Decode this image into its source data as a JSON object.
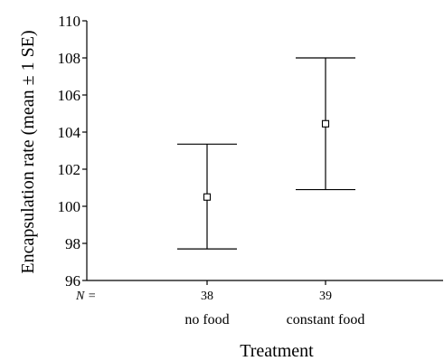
{
  "chart_data": {
    "type": "scatter",
    "title": "",
    "xlabel": "Treatment",
    "ylabel": "Encapsulation rate (mean ± 1 SE)",
    "ylim": [
      96,
      110
    ],
    "yticks": [
      96,
      98,
      100,
      102,
      104,
      106,
      108,
      110
    ],
    "n_prefix": "N =",
    "categories": [
      {
        "label": "no food",
        "n": "38",
        "mean": 100.5,
        "lower": 97.7,
        "upper": 103.35
      },
      {
        "label": "constant food",
        "n": "39",
        "mean": 104.45,
        "lower": 100.9,
        "upper": 108.0
      }
    ],
    "grid": false,
    "legend": "none"
  }
}
